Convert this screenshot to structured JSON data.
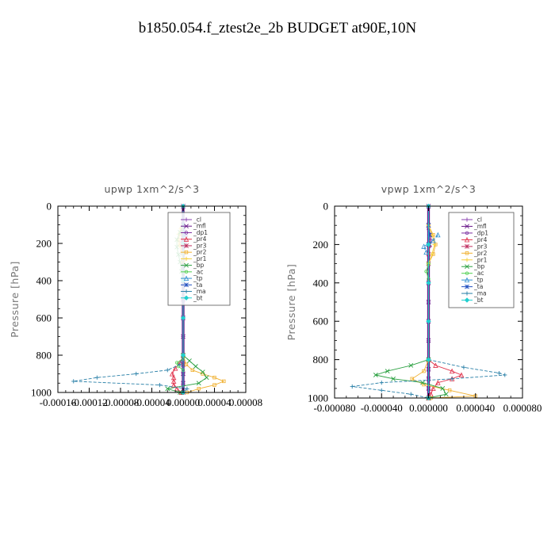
{
  "title": "b1850.054.f_ztest2e_2b  BUDGET at90E,10N",
  "colors": {
    "cl": "#8a3fb0",
    "mfl": "#6a1a8a",
    "dp1": "#7b2fa0",
    "pr4": "#e0304a",
    "pr3": "#c03060",
    "pr2": "#f0b030",
    "pr1": "#f5d040",
    "bp": "#2aa040",
    "ac": "#50d050",
    "tp": "#3090d0",
    "ta": "#2050c0",
    "ma": "#2a80a8",
    "bt": "#20d0d0"
  },
  "chart_data": [
    {
      "type": "line",
      "title": "upwp   1xm^2/s^3",
      "ylabel": "Pressure [hPa]",
      "xlim": [
        -0.00016,
        8e-05
      ],
      "ylim": [
        1000,
        0
      ],
      "xticks": [
        -0.00016,
        -0.00012,
        -8e-05,
        -4e-05,
        0.0,
        4e-05,
        8e-05
      ],
      "xtick_labels": [
        "-0.00016",
        "-0.00012",
        "-0.00008",
        "-0.00004",
        "0.00000",
        "0.00004",
        "0.00008"
      ],
      "yticks": [
        0,
        200,
        400,
        600,
        800,
        1000
      ],
      "ytick_labels": [
        "0",
        "200",
        "400",
        "600",
        "800",
        "1000"
      ],
      "legend_position": "top-right",
      "series": [
        {
          "name": "_cl",
          "key": "cl",
          "p": [
            0,
            100,
            200,
            300,
            400,
            500,
            600,
            700,
            800,
            850,
            900,
            950,
            1000
          ],
          "v": [
            0,
            0,
            0,
            0,
            0,
            0,
            0,
            0,
            0,
            0,
            0,
            0,
            0
          ]
        },
        {
          "name": "_mfl",
          "key": "mfl",
          "p": [
            0,
            100,
            200,
            300,
            400,
            500,
            600,
            700,
            800,
            850,
            900,
            950,
            1000
          ],
          "v": [
            0,
            0,
            0,
            0,
            0,
            0,
            0,
            0,
            0,
            0,
            0,
            0,
            0
          ]
        },
        {
          "name": "_dp1",
          "key": "dp1",
          "p": [
            100,
            130,
            160,
            190,
            220,
            250,
            300
          ],
          "v": [
            0,
            2e-06,
            4e-06,
            3e-06,
            1e-06,
            0,
            0
          ]
        },
        {
          "name": "_pr4",
          "key": "pr4",
          "p": [
            800,
            840,
            870,
            900,
            920,
            940,
            960,
            980,
            1000
          ],
          "v": [
            0,
            -4e-06,
            -1e-05,
            -1.4e-05,
            -1.2e-05,
            -1.2e-05,
            -1.2e-05,
            -8e-06,
            -2e-06
          ]
        },
        {
          "name": "_pr3",
          "key": "pr3",
          "p": [
            100,
            150,
            200,
            250,
            300
          ],
          "v": [
            0,
            -2e-06,
            -2e-06,
            -1e-06,
            0
          ]
        },
        {
          "name": "_pr2",
          "key": "pr2",
          "p": [
            100,
            120,
            150,
            180,
            210,
            250,
            300,
            800,
            850,
            880,
            900,
            920,
            940,
            960,
            980,
            1000
          ],
          "v": [
            0,
            -2e-06,
            -4e-06,
            -6e-06,
            -4e-06,
            -1e-06,
            0,
            0,
            4e-06,
            1.2e-05,
            2.5e-05,
            4e-05,
            5.2e-05,
            4e-05,
            2e-05,
            5e-06
          ]
        },
        {
          "name": "_pr1",
          "key": "pr1",
          "p": [
            100,
            120,
            150,
            180,
            210,
            250,
            300
          ],
          "v": [
            0,
            -3e-06,
            -6e-06,
            -7e-06,
            -5e-06,
            -2e-06,
            0
          ]
        },
        {
          "name": "_bp",
          "key": "bp",
          "p": [
            100,
            140,
            180,
            220,
            260,
            300,
            350,
            400,
            800,
            830,
            860,
            890,
            920,
            950,
            980,
            1000
          ],
          "v": [
            0,
            -4e-06,
            -8e-06,
            -8e-06,
            -6e-06,
            -4e-06,
            -2e-06,
            0,
            0,
            8e-06,
            1.6e-05,
            2.5e-05,
            3e-05,
            2e-05,
            -2e-05,
            -4e-06
          ]
        },
        {
          "name": "_ac",
          "key": "ac",
          "p": [
            820,
            840,
            860,
            880
          ],
          "v": [
            0,
            -8e-06,
            -6e-06,
            0
          ]
        },
        {
          "name": "_tp",
          "key": "tp",
          "p": [
            100,
            150,
            200,
            250
          ],
          "v": [
            0,
            2e-06,
            2e-06,
            0
          ]
        },
        {
          "name": "_ta",
          "key": "ta",
          "p": [
            100,
            150,
            200
          ],
          "v": [
            0,
            1e-06,
            0
          ]
        },
        {
          "name": "_ma",
          "key": "ma",
          "p": [
            800,
            850,
            880,
            900,
            920,
            940,
            960,
            980,
            1000
          ],
          "v": [
            0,
            -4e-06,
            -2e-05,
            -6e-05,
            -0.00011,
            -0.00014,
            -3e-05,
            5e-06,
            0
          ]
        },
        {
          "name": "_bt",
          "key": "bt",
          "p": [
            0,
            200,
            400,
            600,
            800,
            1000
          ],
          "v": [
            0,
            0,
            0,
            0,
            0,
            0
          ]
        }
      ]
    },
    {
      "type": "line",
      "title": "vpwp   1xm^2/s^3",
      "ylabel": "Pressure [hPa]",
      "xlim": [
        -8e-05,
        8e-05
      ],
      "ylim": [
        1000,
        0
      ],
      "xticks": [
        -8e-05,
        -4e-05,
        0.0,
        4e-05,
        8e-05
      ],
      "xtick_labels": [
        "-0.000080",
        "-0.000040",
        "0.000000",
        "0.000040",
        "0.000080"
      ],
      "yticks": [
        0,
        200,
        400,
        600,
        800,
        1000
      ],
      "ytick_labels": [
        "0",
        "200",
        "400",
        "600",
        "800",
        "1000"
      ],
      "legend_position": "top-right",
      "series": [
        {
          "name": "_cl",
          "key": "cl",
          "p": [
            0,
            100,
            200,
            300,
            400,
            500,
            600,
            700,
            800,
            850,
            900,
            950,
            1000
          ],
          "v": [
            0,
            0,
            0,
            0,
            0,
            0,
            0,
            0,
            0,
            0,
            0,
            0,
            0
          ]
        },
        {
          "name": "_mfl",
          "key": "mfl",
          "p": [
            0,
            100,
            200,
            300,
            400,
            500,
            600,
            700,
            800,
            850,
            900,
            950,
            1000
          ],
          "v": [
            0,
            0,
            0,
            0,
            0,
            0,
            0,
            0,
            0,
            0,
            0,
            0,
            0
          ]
        },
        {
          "name": "_dp1",
          "key": "dp1",
          "p": [
            120,
            150,
            180,
            210,
            250
          ],
          "v": [
            0,
            2e-06,
            2e-06,
            1e-06,
            0
          ]
        },
        {
          "name": "_pr4",
          "key": "pr4",
          "p": [
            800,
            830,
            860,
            880,
            900,
            920,
            950,
            980,
            1000
          ],
          "v": [
            0,
            6e-06,
            2e-05,
            2.8e-05,
            2e-05,
            8e-06,
            4e-06,
            2e-06,
            0
          ]
        },
        {
          "name": "_pr3",
          "key": "pr3",
          "p": [
            100,
            150,
            200,
            250
          ],
          "v": [
            0,
            1e-06,
            1e-06,
            0
          ]
        },
        {
          "name": "_pr2",
          "key": "pr2",
          "p": [
            100,
            150,
            200,
            250,
            300,
            800,
            860,
            900,
            930,
            960,
            990,
            1000
          ],
          "v": [
            0,
            4e-06,
            6e-06,
            4e-06,
            0,
            0,
            -4e-06,
            -1.4e-05,
            -4e-06,
            1.8e-05,
            4e-05,
            2e-06
          ]
        },
        {
          "name": "_pr1",
          "key": "pr1",
          "p": [
            100,
            150,
            200,
            250,
            300
          ],
          "v": [
            0,
            3e-06,
            5e-06,
            3e-06,
            0
          ]
        },
        {
          "name": "_bp",
          "key": "bp",
          "p": [
            800,
            830,
            860,
            880,
            900,
            920,
            950,
            980,
            1000
          ],
          "v": [
            0,
            -1.5e-05,
            -3.5e-05,
            -4.5e-05,
            -3e-05,
            -5e-06,
            1.2e-05,
            1.5e-05,
            0
          ]
        },
        {
          "name": "_ac",
          "key": "ac",
          "p": [
            300,
            340,
            380
          ],
          "v": [
            0,
            -2e-06,
            0
          ]
        },
        {
          "name": "_tp",
          "key": "tp",
          "p": [
            150,
            180,
            210,
            240
          ],
          "v": [
            8e-06,
            4e-06,
            -4e-06,
            -2e-06
          ]
        },
        {
          "name": "_ta",
          "key": "ta",
          "p": [
            100,
            150,
            200
          ],
          "v": [
            0,
            1e-06,
            0
          ]
        },
        {
          "name": "_ma",
          "key": "ma",
          "p": [
            800,
            840,
            870,
            880,
            900,
            920,
            940,
            960,
            980,
            1000
          ],
          "v": [
            0,
            3e-05,
            6e-05,
            6.5e-05,
            2e-05,
            -4e-05,
            -6.5e-05,
            -4e-05,
            -1.5e-05,
            0
          ]
        },
        {
          "name": "_bt",
          "key": "bt",
          "p": [
            0,
            200,
            400,
            600,
            800,
            1000
          ],
          "v": [
            0,
            0,
            0,
            0,
            0,
            0
          ]
        }
      ]
    }
  ]
}
